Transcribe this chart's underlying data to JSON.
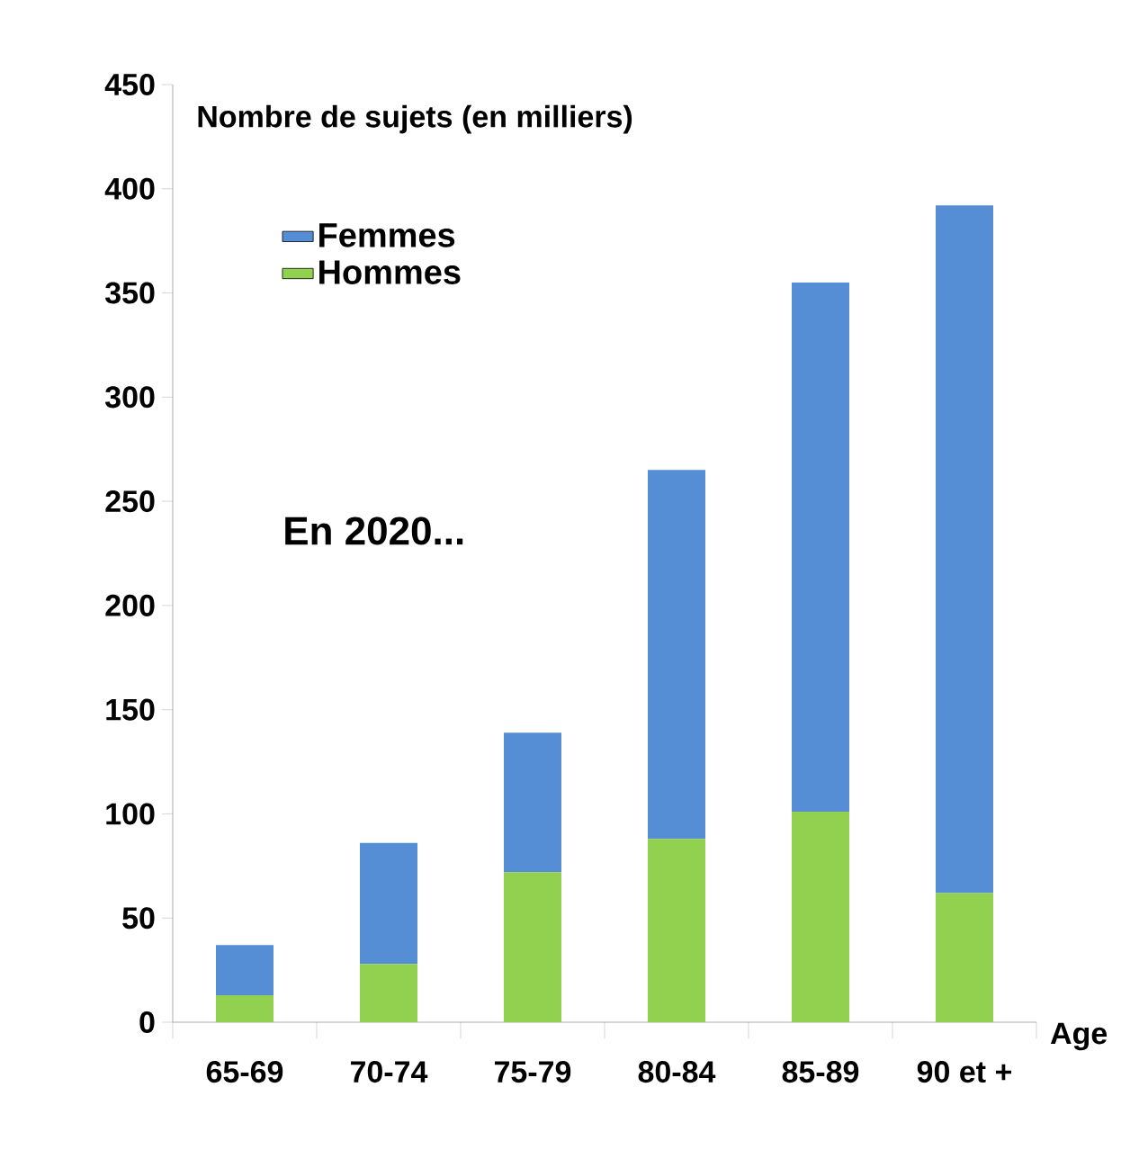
{
  "chart_data": {
    "type": "bar",
    "stacked": true,
    "ylabel": "Nombre de sujets (en milliers)",
    "xlabel": "Age",
    "categories": [
      "65-69",
      "70-74",
      "75-79",
      "80-84",
      "85-89",
      "90 et +"
    ],
    "series": [
      {
        "name": "Hommes",
        "color": "#92d050",
        "values": [
          13,
          28,
          72,
          88,
          101,
          62
        ]
      },
      {
        "name": "Femmes",
        "color": "#558ed5",
        "values": [
          24,
          58,
          67,
          177,
          254,
          330
        ]
      }
    ],
    "ylim": [
      0,
      450
    ],
    "yticks": [
      0,
      50,
      100,
      150,
      200,
      250,
      300,
      350,
      400,
      450
    ],
    "legend": "top left",
    "grid": false,
    "annotations": [
      "En 2020..."
    ]
  }
}
